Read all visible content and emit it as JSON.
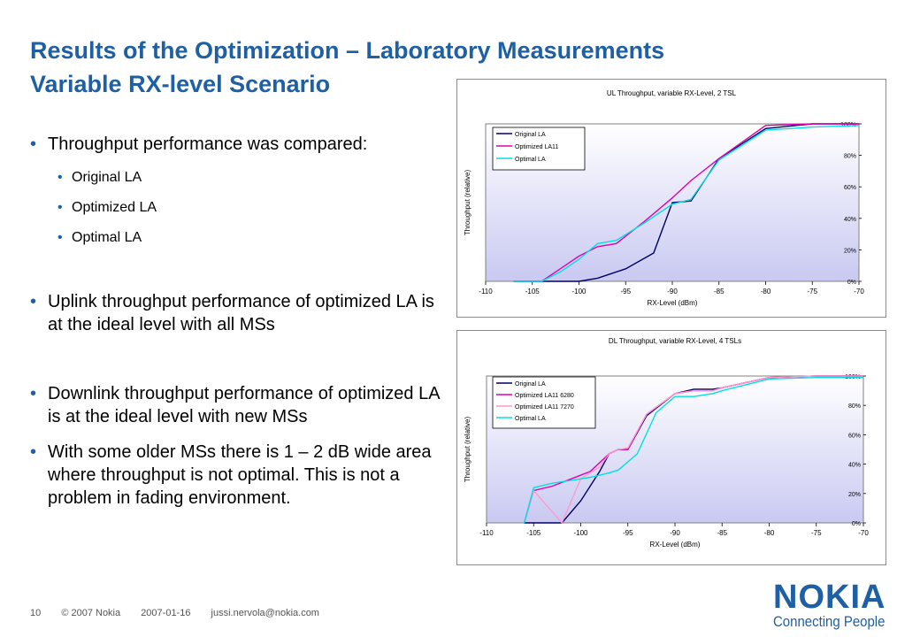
{
  "slide": {
    "title_line1": "Results of the Optimization – Laboratory Measurements",
    "title_line2": "Variable RX-level Scenario",
    "bullets": [
      {
        "level": 1,
        "text": "Throughput performance was compared:"
      },
      {
        "level": 2,
        "text": "Original LA"
      },
      {
        "level": 2,
        "text": "Optimized LA"
      },
      {
        "level": 2,
        "text": "Optimal LA"
      },
      {
        "level": 1,
        "text": "Uplink throughput performance of optimized LA is at the ideal level with all MSs"
      },
      {
        "level": 1,
        "text": "Downlink throughput performance of optimized LA is at the ideal level with new MSs"
      },
      {
        "level": 1,
        "text": "With some older MSs there is 1 – 2 dB wide area where throughput is not optimal. This is not a problem in fading environment."
      }
    ]
  },
  "footer": {
    "page": "10",
    "copyright": "© 2007 Nokia",
    "date": "2007-01-16",
    "email": "jussi.nervola@nokia.com"
  },
  "logo": {
    "word": "NOKIA",
    "tagline": "Connecting People"
  },
  "colors": {
    "accent": "#1f5fa3",
    "plot_bg_top": "#ffffff",
    "plot_bg_bottom": "#c9c9f2"
  },
  "chart_data": [
    {
      "type": "line",
      "title": "UL Throughput, variable RX-Level, 2 TSL",
      "xlabel": "RX-Level (dBm)",
      "ylabel": "Throughput (relative)",
      "xlim": [
        -110,
        -70
      ],
      "ylim": [
        0,
        100
      ],
      "xticks": [
        "-110",
        "-105",
        "-100",
        "-95",
        "-90",
        "-85",
        "-80",
        "-75",
        "-70"
      ],
      "yticks": [
        "0%",
        "20%",
        "40%",
        "60%",
        "80%",
        "100%"
      ],
      "y_axis_side": "right",
      "grid": false,
      "legend_position": "top-left",
      "series": [
        {
          "name": "Original LA",
          "color": "#000066",
          "x": [
            -107,
            -103,
            -100,
            -98,
            -95,
            -92,
            -90,
            -88,
            -85,
            -80,
            -75,
            -70
          ],
          "y": [
            0,
            0,
            0,
            2,
            8,
            18,
            50,
            51,
            78,
            97,
            100,
            100
          ]
        },
        {
          "name": "Optimized LA11",
          "color": "#e000b0",
          "x": [
            -107,
            -104,
            -102,
            -100,
            -98,
            -96,
            -93,
            -90,
            -88,
            -85,
            -80,
            -75,
            -70
          ],
          "y": [
            0,
            0,
            8,
            16,
            22,
            24,
            38,
            53,
            64,
            78,
            99,
            100,
            100
          ]
        },
        {
          "name": "Optimal LA",
          "color": "#00e0e0",
          "x": [
            -107,
            -104,
            -102,
            -100,
            -98,
            -96,
            -93,
            -90,
            -88,
            -85,
            -80,
            -75,
            -70
          ],
          "y": [
            0,
            0,
            6,
            14,
            24,
            26,
            37,
            49,
            52,
            77,
            96,
            98,
            99
          ]
        }
      ]
    },
    {
      "type": "line",
      "title": "DL Throughput, variable RX-Level, 4 TSLs",
      "xlabel": "RX-Level (dBm)",
      "ylabel": "Throughput (relative)",
      "xlim": [
        -110,
        -70
      ],
      "ylim": [
        0,
        100
      ],
      "xticks": [
        "-110",
        "-105",
        "-100",
        "-95",
        "-90",
        "-85",
        "-80",
        "-75",
        "-70"
      ],
      "yticks": [
        "0%",
        "20%",
        "40%",
        "60%",
        "80%",
        "100%"
      ],
      "y_axis_side": "right",
      "grid": false,
      "legend_position": "top-left",
      "series": [
        {
          "name": "Original LA",
          "color": "#000066",
          "x": [
            -106,
            -104,
            -102,
            -100,
            -98,
            -97,
            -96,
            -95,
            -93,
            -90,
            -88,
            -86,
            -85,
            -80,
            -75,
            -70
          ],
          "y": [
            0,
            0,
            0,
            15,
            35,
            47,
            50,
            50,
            73,
            88,
            91,
            91,
            92,
            99,
            100,
            100
          ]
        },
        {
          "name": "Optimized LA11 6280",
          "color": "#e000b0",
          "x": [
            -106,
            -105,
            -103,
            -101,
            -99,
            -97,
            -96,
            -95,
            -93,
            -90,
            -88,
            -86,
            -85,
            -80,
            -75,
            -70
          ],
          "y": [
            0,
            22,
            25,
            30,
            35,
            47,
            50,
            50,
            74,
            88,
            90,
            90,
            92,
            99,
            100,
            100
          ]
        },
        {
          "name": "Optimized LA11 7270",
          "color": "#ff99cc",
          "x": [
            -106,
            -105,
            -102,
            -100,
            -98,
            -97,
            -96,
            -95,
            -93,
            -90,
            -88,
            -86,
            -85,
            -80,
            -75,
            -70
          ],
          "y": [
            0,
            22,
            0,
            30,
            38,
            47,
            50,
            51,
            74,
            88,
            90,
            90,
            92,
            99,
            100,
            100
          ]
        },
        {
          "name": "Optimal LA",
          "color": "#00e0e0",
          "x": [
            -106,
            -105,
            -103,
            -101,
            -99,
            -97,
            -96,
            -94,
            -92,
            -90,
            -88,
            -86,
            -85,
            -80,
            -75,
            -70
          ],
          "y": [
            0,
            24,
            27,
            29,
            31,
            34,
            36,
            47,
            75,
            86,
            86,
            88,
            90,
            98,
            99,
            99
          ]
        }
      ]
    }
  ]
}
